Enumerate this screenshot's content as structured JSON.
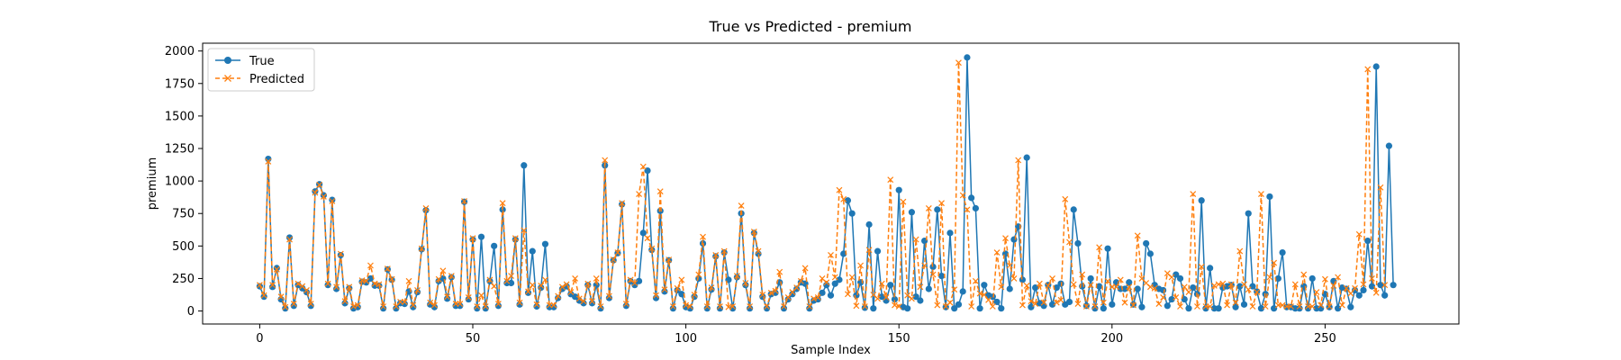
{
  "chart_data": {
    "type": "line",
    "title": "True vs Predicted - premium",
    "xlabel": "Sample Index",
    "ylabel": "premium",
    "xlim": [
      -13.4,
      281.4
    ],
    "ylim": [
      -100,
      2060
    ],
    "xticks": [
      0,
      50,
      100,
      150,
      200,
      250
    ],
    "yticks": [
      0,
      250,
      500,
      750,
      1000,
      1250,
      1500,
      1750,
      2000
    ],
    "grid": false,
    "legend_position": "top-left",
    "colors": {
      "true": "#1f77b4",
      "predicted": "#ff7f0e"
    },
    "series": [
      {
        "name": "True",
        "marker": "circle",
        "line": "solid",
        "values": [
          190,
          110,
          1170,
          185,
          330,
          90,
          20,
          565,
          40,
          200,
          175,
          145,
          40,
          920,
          975,
          890,
          200,
          855,
          170,
          430,
          60,
          175,
          20,
          30,
          225,
          220,
          250,
          195,
          195,
          20,
          320,
          240,
          20,
          60,
          55,
          150,
          30,
          145,
          475,
          775,
          50,
          30,
          230,
          250,
          95,
          260,
          40,
          40,
          840,
          90,
          550,
          20,
          570,
          20,
          230,
          500,
          40,
          780,
          215,
          215,
          550,
          50,
          1120,
          140,
          460,
          35,
          180,
          515,
          30,
          30,
          100,
          170,
          190,
          130,
          110,
          80,
          60,
          200,
          60,
          200,
          20,
          1120,
          100,
          390,
          445,
          820,
          40,
          230,
          200,
          230,
          600,
          1080,
          470,
          100,
          770,
          150,
          390,
          20,
          160,
          130,
          30,
          20,
          110,
          250,
          520,
          20,
          165,
          420,
          20,
          450,
          240,
          20,
          260,
          750,
          200,
          20,
          600,
          440,
          110,
          20,
          130,
          140,
          220,
          20,
          90,
          130,
          170,
          220,
          210,
          20,
          80,
          90,
          140,
          200,
          120,
          210,
          240,
          440,
          850,
          750,
          120,
          220,
          25,
          665,
          20,
          460,
          110,
          80,
          200,
          90,
          930,
          30,
          20,
          760,
          110,
          80,
          540,
          170,
          340,
          780,
          270,
          30,
          600,
          20,
          50,
          150,
          1950,
          870,
          790,
          20,
          200,
          120,
          110,
          70,
          20,
          440,
          170,
          550,
          650,
          240,
          1180,
          30,
          180,
          60,
          40,
          200,
          50,
          180,
          210,
          50,
          70,
          780,
          520,
          190,
          40,
          250,
          20,
          190,
          20,
          480,
          50,
          220,
          170,
          170,
          220,
          50,
          170,
          30,
          520,
          440,
          200,
          170,
          160,
          40,
          90,
          280,
          250,
          90,
          20,
          180,
          130,
          850,
          20,
          330,
          20,
          20,
          180,
          190,
          200,
          30,
          190,
          50,
          750,
          190,
          150,
          20,
          130,
          880,
          20,
          250,
          450,
          30,
          30,
          20,
          20,
          190,
          20,
          250,
          20,
          20,
          130,
          30,
          230,
          20,
          180,
          170,
          30,
          160,
          120,
          160,
          540,
          190,
          1880,
          200,
          120,
          1270,
          200
        ]
      },
      {
        "name": "Predicted",
        "marker": "x",
        "line": "dashed",
        "values": [
          200,
          120,
          1150,
          200,
          320,
          110,
          30,
          550,
          55,
          210,
          190,
          160,
          55,
          910,
          970,
          880,
          210,
          845,
          185,
          440,
          75,
          185,
          35,
          45,
          235,
          230,
          350,
          210,
          205,
          35,
          325,
          245,
          35,
          70,
          70,
          230,
          45,
          160,
          480,
          790,
          65,
          45,
          245,
          310,
          110,
          270,
          55,
          55,
          845,
          105,
          560,
          35,
          120,
          35,
          240,
          190,
          55,
          830,
          230,
          270,
          560,
          65,
          620,
          150,
          200,
          50,
          195,
          240,
          45,
          45,
          115,
          185,
          205,
          145,
          250,
          95,
          75,
          210,
          75,
          250,
          35,
          1160,
          115,
          395,
          450,
          830,
          55,
          240,
          215,
          900,
          1110,
          560,
          480,
          120,
          920,
          165,
          395,
          35,
          175,
          240,
          45,
          35,
          125,
          280,
          570,
          35,
          180,
          430,
          35,
          460,
          30,
          35,
          270,
          810,
          215,
          35,
          610,
          460,
          125,
          35,
          140,
          155,
          300,
          35,
          105,
          145,
          180,
          230,
          330,
          35,
          95,
          105,
          250,
          220,
          430,
          260,
          930,
          860,
          130,
          260,
          40,
          350,
          35,
          470,
          125,
          95,
          210,
          105,
          1010,
          45,
          35,
          840,
          120,
          95,
          550,
          185,
          350,
          790,
          280,
          45,
          830,
          35,
          65,
          165,
          1910,
          890,
          780,
          35,
          230,
          135,
          125,
          85,
          35,
          450,
          185,
          560,
          350,
          250,
          1160,
          45,
          195,
          75,
          55,
          210,
          65,
          195,
          250,
          65,
          85,
          860,
          530,
          205,
          55,
          280,
          35,
          200,
          35,
          490,
          65,
          230,
          185,
          185,
          240,
          65,
          185,
          45,
          580,
          250,
          215,
          185,
          175,
          55,
          105,
          290,
          260,
          105,
          35,
          185,
          145,
          900,
          35,
          340,
          35,
          35,
          195,
          205,
          210,
          45,
          205,
          65,
          460,
          205,
          165,
          35,
          145,
          900,
          35,
          260,
          370,
          45,
          45,
          35,
          35,
          205,
          35,
          280,
          35,
          35,
          145,
          45,
          245,
          35,
          195,
          260,
          45,
          175,
          135,
          175,
          590,
          205,
          1860,
          250,
          140,
          950,
          200
        ]
      }
    ]
  }
}
